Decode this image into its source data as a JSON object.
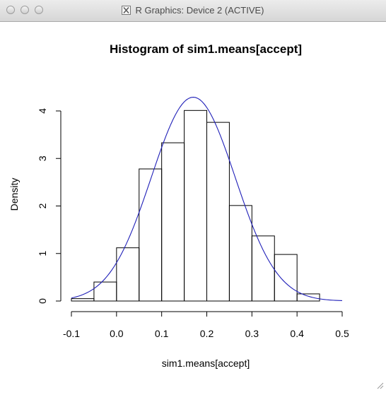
{
  "window": {
    "title": "R Graphics: Device 2 (ACTIVE)"
  },
  "colors": {
    "curve": "#1f1fb8",
    "bars": "#000000",
    "titlebar": "#dcdcdc"
  },
  "chart_data": {
    "type": "bar",
    "title": "Histogram of sim1.means[accept]",
    "xlabel": "sim1.means[accept]",
    "ylabel": "Density",
    "xlim": [
      -0.1,
      0.5
    ],
    "ylim": [
      0,
      4.3
    ],
    "x_ticks": [
      "-0.1",
      "0.0",
      "0.1",
      "0.2",
      "0.3",
      "0.4",
      "0.5"
    ],
    "y_ticks": [
      "0",
      "1",
      "2",
      "3",
      "4"
    ],
    "bins": [
      {
        "from": -0.1,
        "to": -0.05,
        "density": 0.05
      },
      {
        "from": -0.05,
        "to": 0.0,
        "density": 0.4
      },
      {
        "from": 0.0,
        "to": 0.05,
        "density": 1.12
      },
      {
        "from": 0.05,
        "to": 0.1,
        "density": 2.78
      },
      {
        "from": 0.1,
        "to": 0.15,
        "density": 3.33
      },
      {
        "from": 0.15,
        "to": 0.2,
        "density": 4.01
      },
      {
        "from": 0.2,
        "to": 0.25,
        "density": 3.76
      },
      {
        "from": 0.25,
        "to": 0.3,
        "density": 2.01
      },
      {
        "from": 0.3,
        "to": 0.35,
        "density": 1.37
      },
      {
        "from": 0.35,
        "to": 0.4,
        "density": 0.98
      },
      {
        "from": 0.4,
        "to": 0.45,
        "density": 0.15
      }
    ],
    "curve": {
      "type": "line",
      "mean": 0.17,
      "sd": 0.093,
      "x_range": [
        -0.1,
        0.5
      ]
    }
  }
}
